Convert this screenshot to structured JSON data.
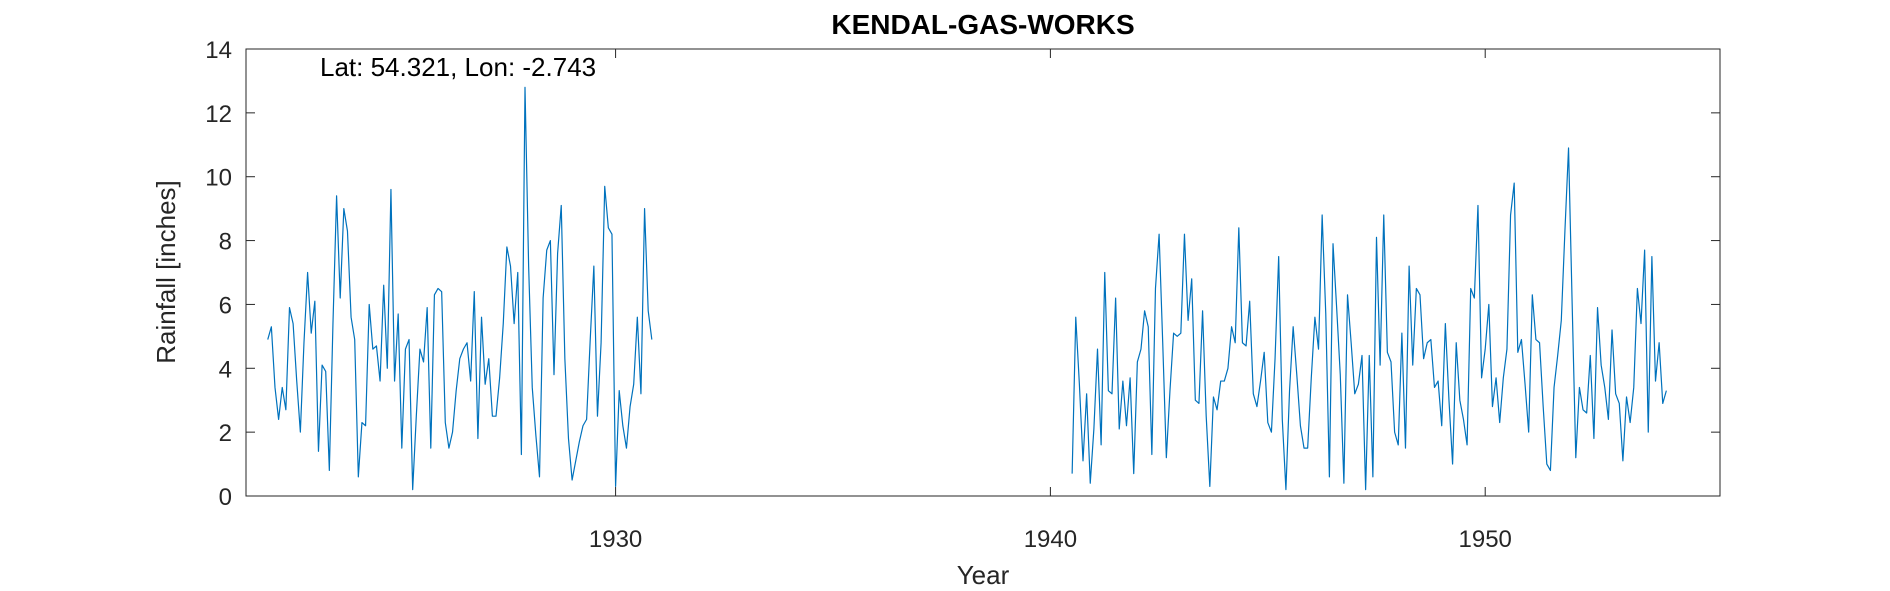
{
  "chart_data": {
    "type": "line",
    "title": "KENDAL-GAS-WORKS",
    "annotation": "Lat: 54.321, Lon: -2.743",
    "xlabel": "Year",
    "ylabel": "Rainfall [inches]",
    "xlim": [
      1921.5,
      1955.4
    ],
    "ylim": [
      0,
      14
    ],
    "xticks": [
      1930,
      1940,
      1950
    ],
    "yticks": [
      0,
      2,
      4,
      6,
      8,
      10,
      12,
      14
    ],
    "grid": false,
    "line_color": "#0072BD",
    "series": [
      {
        "start": [
          1922,
          1
        ],
        "values": [
          4.9,
          5.3,
          3.4,
          2.4,
          3.4,
          2.7,
          5.9,
          5.4,
          3.6,
          2.0,
          4.8,
          7.0,
          5.1,
          6.1,
          1.4,
          4.1,
          3.9,
          0.8,
          5.4,
          9.4,
          6.2,
          9.0,
          8.3,
          5.6,
          4.9,
          0.6,
          2.3,
          2.2,
          6.0,
          4.6,
          4.7,
          3.6,
          6.6,
          4.0,
          9.6,
          3.6,
          5.7,
          1.5,
          4.6,
          4.9,
          0.2,
          2.5,
          4.6,
          4.2,
          5.9,
          1.5,
          6.3,
          6.5,
          6.4,
          2.3,
          1.5,
          2.0,
          3.3,
          4.3,
          4.6,
          4.8,
          3.6,
          6.4,
          1.8,
          5.6,
          3.5,
          4.3,
          2.5,
          2.5,
          3.7,
          5.4,
          7.8,
          7.2,
          5.4,
          7.0,
          1.3,
          12.8,
          7.2,
          3.4,
          1.9,
          0.6,
          6.2,
          7.7,
          8.0,
          3.8,
          7.6,
          9.1,
          4.3,
          1.8,
          0.5,
          1.1,
          1.7,
          2.2,
          2.4,
          4.9,
          7.2,
          2.5,
          4.8,
          9.7,
          8.4,
          8.2,
          0.3,
          3.3,
          2.2,
          1.5,
          2.8,
          3.5,
          5.6,
          3.2,
          9.0,
          5.8,
          4.9
        ]
      },
      {
        "start": [
          1940,
          7
        ],
        "values": [
          0.7,
          5.6,
          3.5,
          1.1,
          3.2,
          0.4,
          2.1,
          4.6,
          1.6,
          7.0,
          3.3,
          3.2,
          6.2,
          2.1,
          3.6,
          2.2,
          3.7,
          0.7,
          4.2,
          4.6,
          5.8,
          5.3,
          1.3,
          6.5,
          8.2,
          4.8,
          1.2,
          3.3,
          5.1,
          5.0,
          5.1,
          8.2,
          5.5,
          6.8,
          3.0,
          2.9,
          5.8,
          2.5,
          0.3,
          3.1,
          2.7,
          3.6,
          3.6,
          4.0,
          5.3,
          4.8,
          8.4,
          4.8,
          4.7,
          6.1,
          3.2,
          2.8,
          3.6,
          4.5,
          2.3,
          2.0,
          4.3,
          7.5,
          2.4,
          0.2,
          3.3,
          5.3,
          3.8,
          2.2,
          1.5,
          1.5,
          3.7,
          5.6,
          4.6,
          8.8,
          5.7,
          0.6,
          7.9,
          5.9,
          3.8,
          0.4,
          6.3,
          4.8,
          3.2,
          3.5,
          4.4,
          0.2,
          4.4,
          0.6,
          8.1,
          4.1,
          8.8,
          4.5,
          4.2,
          2.0,
          1.6,
          5.1,
          1.5,
          7.2,
          4.1,
          6.5,
          6.3,
          4.3,
          4.8,
          4.9,
          3.4,
          3.6,
          2.2,
          5.4,
          3.0,
          1.0,
          4.8,
          3.0,
          2.4,
          1.6,
          6.5,
          6.2,
          9.1,
          3.7,
          4.6,
          6.0,
          2.8,
          3.7,
          2.3,
          3.7,
          4.6,
          8.8,
          9.8,
          4.5,
          4.9,
          3.5,
          2.0,
          6.3,
          4.9,
          4.8,
          2.8,
          1.0,
          0.8,
          3.4,
          4.4,
          5.5,
          8.3,
          10.9,
          6.0,
          1.2,
          3.4,
          2.7,
          2.6,
          4.4,
          1.8,
          5.9,
          4.1,
          3.4,
          2.4,
          5.2,
          3.2,
          2.9,
          1.1,
          3.1,
          2.3,
          3.4,
          6.5,
          5.4,
          7.7,
          2.0,
          7.5,
          3.6,
          4.8,
          2.9,
          3.3
        ]
      }
    ]
  }
}
